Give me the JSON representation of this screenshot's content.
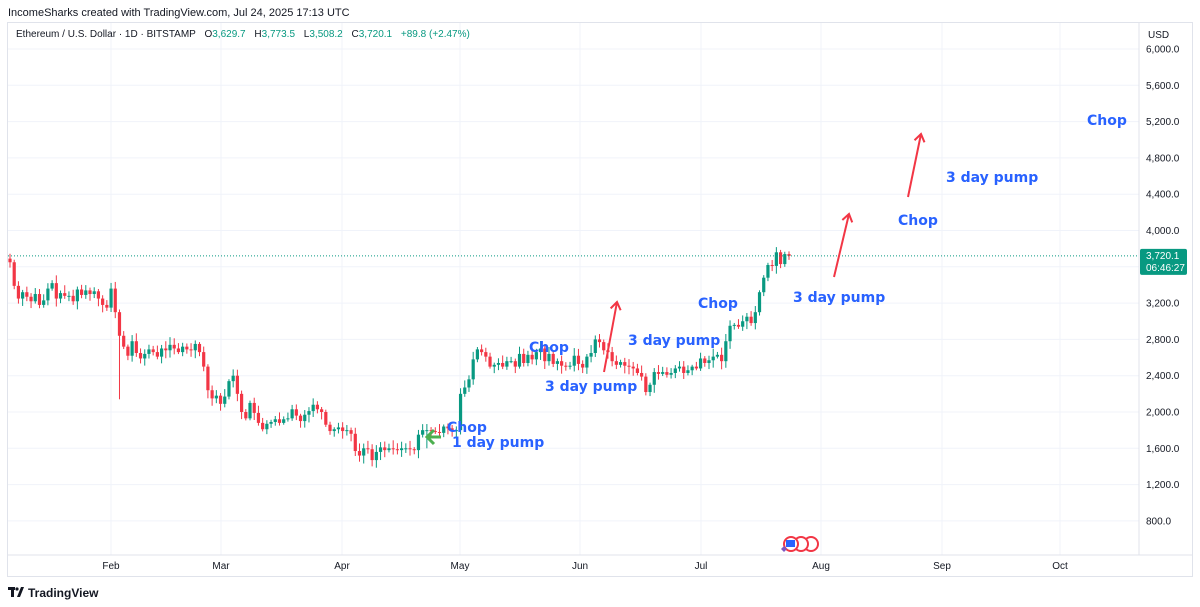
{
  "header": {
    "credit": "IncomeSharks created with TradingView.com, Jul 24, 2025 17:13 UTC"
  },
  "legend": {
    "symbol": "Ethereum / U.S. Dollar · 1D · BITSTAMP",
    "open_label": "O",
    "open": "3,629.7",
    "high_label": "H",
    "high": "3,773.5",
    "low_label": "L",
    "low": "3,508.2",
    "close_label": "C",
    "close": "3,720.1",
    "change": "+89.8 (+2.47%)"
  },
  "price_axis": {
    "currency": "USD",
    "last_price": "3,720.1",
    "countdown": "06:46:27"
  },
  "footer": {
    "brand": "TradingView"
  },
  "colors": {
    "up": "#089981",
    "down": "#f23645",
    "annotation_text": "#2962ff",
    "arrow_red": "#f23645",
    "arrow_green": "#4caf50"
  },
  "chart_data": {
    "type": "candlestick",
    "symbol": "ETH/USD",
    "interval": "1D",
    "x_labels": [
      "Feb",
      "Mar",
      "Apr",
      "May",
      "Jun",
      "Jul",
      "Aug",
      "Sep",
      "Oct"
    ],
    "y_ticks": [
      "800.0",
      "1,200.0",
      "1,600.0",
      "2,000.0",
      "2,400.0",
      "2,800.0",
      "3,200.0",
      "3,600.0",
      "4,000.0",
      "4,400.0",
      "4,800.0",
      "5,200.0",
      "5,600.0",
      "6,000.0"
    ],
    "ylim": [
      400,
      6150
    ],
    "grid": true,
    "last_price": 3720.1,
    "closes": [
      3650,
      3390,
      3250,
      3320,
      3270,
      3220,
      3300,
      3180,
      3230,
      3360,
      3420,
      3250,
      3310,
      3280,
      3280,
      3220,
      3350,
      3290,
      3340,
      3300,
      3330,
      3250,
      3180,
      3150,
      3360,
      3100,
      2840,
      2720,
      2620,
      2780,
      2650,
      2590,
      2640,
      2690,
      2660,
      2610,
      2700,
      2680,
      2740,
      2700,
      2660,
      2720,
      2690,
      2680,
      2750,
      2660,
      2500,
      2240,
      2150,
      2180,
      2090,
      2170,
      2340,
      2400,
      2200,
      2000,
      1930,
      2100,
      1990,
      1880,
      1810,
      1870,
      1890,
      1920,
      1880,
      1920,
      1930,
      2030,
      1960,
      1900,
      1970,
      2010,
      2080,
      2030,
      2000,
      1860,
      1790,
      1810,
      1830,
      1790,
      1800,
      1760,
      1570,
      1520,
      1600,
      1590,
      1470,
      1560,
      1610,
      1580,
      1600,
      1590,
      1580,
      1600,
      1600,
      1590,
      1580,
      1750,
      1800,
      1800,
      1790,
      1780,
      1770,
      1840,
      1820,
      1800,
      1800,
      2200,
      2270,
      2360,
      2580,
      2690,
      2660,
      2610,
      2500,
      2520,
      2540,
      2500,
      2560,
      2560,
      2500,
      2640,
      2540,
      2630,
      2580,
      2660,
      2700,
      2560,
      2640,
      2530,
      2560,
      2510,
      2500,
      2510,
      2620,
      2530,
      2490,
      2610,
      2650,
      2800,
      2770,
      2680,
      2660,
      2560,
      2520,
      2550,
      2510,
      2500,
      2480,
      2430,
      2390,
      2220,
      2300,
      2440,
      2420,
      2440,
      2410,
      2430,
      2480,
      2500,
      2430,
      2460,
      2500,
      2480,
      2590,
      2540,
      2570,
      2610,
      2630,
      2560,
      2780,
      2950,
      2960,
      2940,
      3000,
      3050,
      2980,
      3100,
      3320,
      3480,
      3620,
      3610,
      3760,
      3630,
      3740,
      3720
    ],
    "annotations": [
      {
        "text": "Chop"
      },
      {
        "text": "1 day pump"
      },
      {
        "text": "Chop"
      },
      {
        "text": "3 day pump"
      },
      {
        "text": "3 day pump"
      },
      {
        "text": "Chop"
      },
      {
        "text": "3 day pump"
      },
      {
        "text": "Chop"
      },
      {
        "text": "3 day pump"
      },
      {
        "text": "Chop"
      }
    ]
  }
}
